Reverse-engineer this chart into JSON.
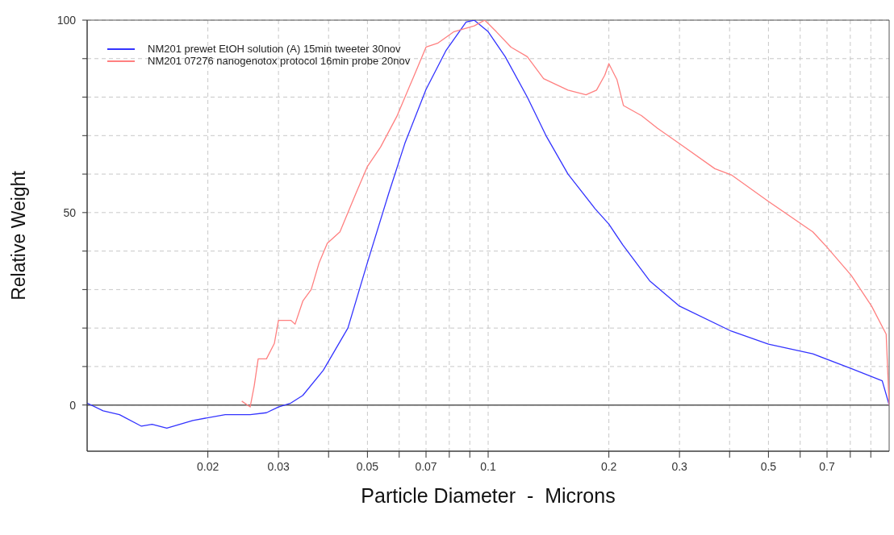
{
  "chart_data": {
    "type": "line",
    "xlabel": "Particle Diameter  -  Microns",
    "ylabel": "Relative Weight",
    "log": "x",
    "xlim": [
      0.01,
      1
    ],
    "ylim": [
      -12,
      100
    ],
    "xticks": [
      0.02,
      0.03,
      {
        "value": 0.04,
        "label": null
      },
      0.05,
      {
        "value": 0.06,
        "label": null
      },
      0.07,
      {
        "value": 0.08,
        "label": null
      },
      {
        "value": 0.09,
        "label": null
      },
      0.1,
      0.2,
      0.3,
      {
        "value": 0.4,
        "label": null
      },
      0.5,
      {
        "value": 0.6,
        "label": null
      },
      0.7,
      {
        "value": 0.8,
        "label": null
      },
      {
        "value": 0.9,
        "label": null
      }
    ],
    "yticks": [
      0,
      {
        "value": 10,
        "label": null
      },
      {
        "value": 20,
        "label": null
      },
      {
        "value": 30,
        "label": null
      },
      {
        "value": 40,
        "label": null
      },
      50,
      {
        "value": 60,
        "label": null
      },
      {
        "value": 70,
        "label": null
      },
      {
        "value": 80,
        "label": null
      },
      {
        "value": 90,
        "label": null
      },
      100
    ],
    "grid": true,
    "legend": "top left",
    "line_style": "solid",
    "marker": "none",
    "ref_lines": [
      {
        "axis": "y",
        "value": 0,
        "color": "#555555"
      }
    ],
    "series": [
      {
        "name": "NM201 prewet EtOH solution (A) 15min tweeter 30nov",
        "color": "#3333ff",
        "x": [
          0.01,
          0.01096,
          0.01204,
          0.01366,
          0.01452,
          0.0158,
          0.01835,
          0.0221,
          0.0255,
          0.028,
          0.03,
          0.0322,
          0.0345,
          0.0388,
          0.0447,
          0.05,
          0.0565,
          0.062,
          0.07,
          0.0784,
          0.0881,
          0.0923,
          0.1,
          0.1103,
          0.1252,
          0.1394,
          0.1582,
          0.1848,
          0.2,
          0.2166,
          0.2527,
          0.3,
          0.4039,
          0.5,
          0.645,
          0.804,
          0.961,
          1.0
        ],
        "values": [
          0.5,
          -1.5,
          -2.5,
          -5.5,
          -5,
          -6,
          -4,
          -2.5,
          -2.5,
          -2,
          -0.5,
          0.5,
          2.5,
          9,
          20,
          37,
          55,
          68,
          82,
          92,
          99.5,
          100,
          97,
          90.5,
          80,
          70,
          60,
          51,
          47,
          41.6,
          32.3,
          25.7,
          19.2,
          15.8,
          13.3,
          9.5,
          6.3,
          0
        ]
      },
      {
        "name": "NM201 07276 nanogenotox protocol 16min probe 20nov",
        "color": "#ff8080",
        "x": [
          0.0243,
          0.0255,
          0.0261,
          0.0267,
          0.028,
          0.0293,
          0.03,
          0.0322,
          0.033,
          0.0345,
          0.0362,
          0.0379,
          0.0397,
          0.0427,
          0.0468,
          0.05,
          0.0539,
          0.0592,
          0.065,
          0.07,
          0.0748,
          0.0822,
          0.0923,
          0.0981,
          0.1048,
          0.114,
          0.1252,
          0.1375,
          0.1582,
          0.1754,
          0.1863,
          0.1954,
          0.2,
          0.2096,
          0.2175,
          0.2412,
          0.2645,
          0.3,
          0.3676,
          0.404,
          0.5,
          0.645,
          0.7,
          0.804,
          0.904,
          0.983,
          1.0
        ],
        "values": [
          1,
          -0.5,
          5,
          12,
          12,
          16,
          22,
          22,
          21,
          27,
          30,
          37,
          42,
          45,
          55,
          62,
          67,
          75,
          85,
          93,
          94,
          97,
          98.5,
          100,
          97,
          93,
          90.5,
          84.8,
          81.8,
          80.6,
          81.8,
          85.7,
          88.7,
          84.5,
          77.8,
          75.2,
          71.9,
          67.9,
          61.4,
          59.8,
          52.9,
          45,
          41,
          33.7,
          25.7,
          18.4,
          0
        ]
      }
    ]
  }
}
